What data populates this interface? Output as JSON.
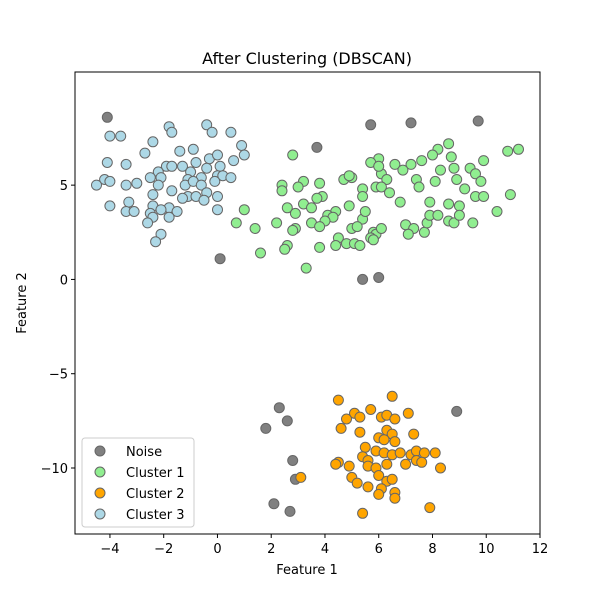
{
  "chart_data": {
    "type": "scatter",
    "title": "After Clustering (DBSCAN)",
    "xlabel": "Feature 1",
    "ylabel": "Feature 2",
    "xlim": [
      -5.3,
      12.0
    ],
    "ylim": [
      -13.5,
      11.0
    ],
    "xticks": [
      -4,
      -2,
      0,
      2,
      4,
      6,
      8,
      10,
      12
    ],
    "yticks": [
      -10,
      -5,
      0,
      5
    ],
    "grid": false,
    "legend_position": "bottom-left",
    "series": [
      {
        "name": "Noise",
        "color": "#808080",
        "points": [
          [
            -4.1,
            8.6
          ],
          [
            3.7,
            7.0
          ],
          [
            5.7,
            8.2
          ],
          [
            7.2,
            8.3
          ],
          [
            9.7,
            8.4
          ],
          [
            0.1,
            1.1
          ],
          [
            5.4,
            0.0
          ],
          [
            6.0,
            0.1
          ],
          [
            2.3,
            -6.8
          ],
          [
            2.6,
            -7.5
          ],
          [
            1.8,
            -7.9
          ],
          [
            2.8,
            -9.6
          ],
          [
            2.9,
            -10.6
          ],
          [
            2.1,
            -11.9
          ],
          [
            2.7,
            -12.3
          ],
          [
            8.9,
            -7.0
          ]
        ]
      },
      {
        "name": "Cluster 1",
        "color": "#90ee90",
        "points": [
          [
            2.8,
            6.6
          ],
          [
            8.6,
            7.2
          ],
          [
            8.2,
            6.9
          ],
          [
            8.0,
            6.6
          ],
          [
            8.7,
            6.5
          ],
          [
            7.6,
            6.3
          ],
          [
            6.0,
            6.4
          ],
          [
            7.2,
            6.1
          ],
          [
            6.6,
            6.1
          ],
          [
            9.9,
            6.3
          ],
          [
            10.8,
            6.8
          ],
          [
            11.2,
            6.9
          ],
          [
            5.7,
            6.2
          ],
          [
            6.9,
            5.8
          ],
          [
            7.4,
            5.3
          ],
          [
            8.3,
            5.8
          ],
          [
            8.8,
            5.9
          ],
          [
            9.4,
            5.9
          ],
          [
            9.6,
            5.6
          ],
          [
            8.9,
            5.3
          ],
          [
            6.1,
            5.6
          ],
          [
            6.3,
            5.3
          ],
          [
            5.0,
            5.4
          ],
          [
            4.7,
            5.3
          ],
          [
            4.9,
            5.5
          ],
          [
            3.2,
            5.2
          ],
          [
            3.0,
            4.9
          ],
          [
            2.4,
            5.0
          ],
          [
            2.4,
            4.7
          ],
          [
            3.8,
            5.1
          ],
          [
            5.4,
            4.8
          ],
          [
            5.9,
            4.9
          ],
          [
            6.1,
            4.9
          ],
          [
            7.5,
            4.9
          ],
          [
            8.1,
            5.2
          ],
          [
            9.2,
            4.8
          ],
          [
            9.8,
            5.2
          ],
          [
            10.9,
            4.5
          ],
          [
            9.6,
            4.4
          ],
          [
            9.9,
            4.4
          ],
          [
            3.9,
            4.4
          ],
          [
            3.7,
            4.3
          ],
          [
            5.4,
            4.4
          ],
          [
            6.4,
            4.6
          ],
          [
            6.8,
            4.1
          ],
          [
            7.9,
            4.1
          ],
          [
            8.6,
            4.0
          ],
          [
            9.0,
            3.9
          ],
          [
            10.4,
            3.6
          ],
          [
            4.9,
            3.9
          ],
          [
            4.4,
            3.6
          ],
          [
            3.2,
            4.0
          ],
          [
            3.5,
            3.8
          ],
          [
            2.6,
            3.8
          ],
          [
            2.9,
            3.5
          ],
          [
            4.1,
            3.4
          ],
          [
            4.3,
            3.3
          ],
          [
            4.0,
            3.1
          ],
          [
            3.5,
            3.0
          ],
          [
            3.8,
            2.8
          ],
          [
            2.9,
            2.7
          ],
          [
            2.8,
            2.6
          ],
          [
            2.2,
            3.0
          ],
          [
            5.4,
            3.2
          ],
          [
            5.5,
            3.6
          ],
          [
            5.0,
            2.7
          ],
          [
            5.2,
            2.8
          ],
          [
            5.8,
            2.5
          ],
          [
            5.9,
            2.4
          ],
          [
            5.7,
            2.2
          ],
          [
            5.8,
            2.1
          ],
          [
            6.1,
            2.7
          ],
          [
            7.0,
            2.9
          ],
          [
            7.3,
            2.7
          ],
          [
            7.1,
            2.4
          ],
          [
            7.7,
            2.5
          ],
          [
            7.8,
            3.0
          ],
          [
            7.9,
            3.4
          ],
          [
            8.2,
            3.4
          ],
          [
            8.6,
            3.1
          ],
          [
            8.8,
            3.0
          ],
          [
            9.0,
            3.4
          ],
          [
            9.5,
            3.0
          ],
          [
            4.5,
            2.2
          ],
          [
            4.4,
            1.8
          ],
          [
            4.8,
            1.9
          ],
          [
            5.1,
            1.9
          ],
          [
            5.3,
            1.8
          ],
          [
            3.8,
            1.7
          ],
          [
            2.6,
            1.8
          ],
          [
            2.5,
            1.6
          ],
          [
            1.6,
            1.4
          ],
          [
            0.7,
            3.0
          ],
          [
            1.4,
            2.7
          ],
          [
            1.0,
            3.7
          ],
          [
            3.3,
            0.6
          ],
          [
            6.0,
            6.0
          ]
        ]
      },
      {
        "name": "Cluster 2",
        "color": "#ffa500",
        "points": [
          [
            4.5,
            -6.4
          ],
          [
            6.5,
            -6.2
          ],
          [
            5.7,
            -6.9
          ],
          [
            5.1,
            -7.1
          ],
          [
            5.3,
            -7.3
          ],
          [
            4.8,
            -7.4
          ],
          [
            6.1,
            -7.3
          ],
          [
            6.3,
            -7.2
          ],
          [
            6.6,
            -7.4
          ],
          [
            7.1,
            -7.1
          ],
          [
            4.6,
            -7.9
          ],
          [
            5.3,
            -8.1
          ],
          [
            6.3,
            -8.0
          ],
          [
            6.5,
            -8.2
          ],
          [
            7.3,
            -8.2
          ],
          [
            6.0,
            -8.4
          ],
          [
            6.2,
            -8.5
          ],
          [
            6.6,
            -8.6
          ],
          [
            5.5,
            -8.9
          ],
          [
            5.9,
            -9.1
          ],
          [
            6.2,
            -9.2
          ],
          [
            6.5,
            -9.3
          ],
          [
            6.8,
            -9.2
          ],
          [
            7.2,
            -9.3
          ],
          [
            7.4,
            -9.1
          ],
          [
            7.7,
            -9.2
          ],
          [
            8.1,
            -9.2
          ],
          [
            5.4,
            -9.4
          ],
          [
            5.6,
            -9.6
          ],
          [
            7.4,
            -9.6
          ],
          [
            7.6,
            -9.7
          ],
          [
            4.5,
            -9.7
          ],
          [
            4.4,
            -9.8
          ],
          [
            4.9,
            -9.9
          ],
          [
            5.6,
            -9.9
          ],
          [
            5.9,
            -10.0
          ],
          [
            6.3,
            -9.8
          ],
          [
            7.0,
            -9.8
          ],
          [
            8.3,
            -10.0
          ],
          [
            3.1,
            -10.5
          ],
          [
            5.0,
            -10.5
          ],
          [
            6.0,
            -10.4
          ],
          [
            6.3,
            -10.7
          ],
          [
            6.5,
            -10.6
          ],
          [
            5.2,
            -10.8
          ],
          [
            5.6,
            -11.0
          ],
          [
            6.1,
            -11.1
          ],
          [
            6.6,
            -11.3
          ],
          [
            6.0,
            -11.4
          ],
          [
            6.6,
            -11.6
          ],
          [
            7.9,
            -12.1
          ],
          [
            5.4,
            -12.4
          ]
        ]
      },
      {
        "name": "Cluster 3",
        "color": "#add8e6",
        "points": [
          [
            -1.8,
            8.1
          ],
          [
            -1.7,
            7.8
          ],
          [
            -0.4,
            8.2
          ],
          [
            -0.2,
            7.8
          ],
          [
            0.5,
            7.8
          ],
          [
            -4.0,
            7.6
          ],
          [
            -3.6,
            7.6
          ],
          [
            -2.4,
            7.3
          ],
          [
            0.9,
            7.1
          ],
          [
            1.0,
            6.6
          ],
          [
            -2.7,
            6.7
          ],
          [
            -1.4,
            6.8
          ],
          [
            -0.9,
            6.9
          ],
          [
            -0.3,
            6.4
          ],
          [
            0.0,
            6.6
          ],
          [
            0.6,
            6.3
          ],
          [
            -4.1,
            6.2
          ],
          [
            -3.4,
            6.1
          ],
          [
            -1.9,
            6.0
          ],
          [
            -1.7,
            6.0
          ],
          [
            -1.3,
            6.0
          ],
          [
            -0.8,
            6.2
          ],
          [
            -0.4,
            5.9
          ],
          [
            0.1,
            6.0
          ],
          [
            -2.2,
            5.7
          ],
          [
            -1.0,
            5.7
          ],
          [
            0.0,
            5.5
          ],
          [
            0.2,
            5.5
          ],
          [
            0.5,
            5.4
          ],
          [
            -4.2,
            5.3
          ],
          [
            -4.0,
            5.2
          ],
          [
            -2.5,
            5.4
          ],
          [
            -2.1,
            5.4
          ],
          [
            -1.1,
            5.3
          ],
          [
            -0.6,
            5.4
          ],
          [
            -4.5,
            5.0
          ],
          [
            -3.4,
            5.0
          ],
          [
            -3.0,
            5.1
          ],
          [
            -2.2,
            5.0
          ],
          [
            -1.2,
            5.0
          ],
          [
            -0.9,
            5.2
          ],
          [
            -0.6,
            5.0
          ],
          [
            -0.1,
            5.2
          ],
          [
            -1.7,
            4.7
          ],
          [
            -0.4,
            4.6
          ],
          [
            -2.4,
            4.5
          ],
          [
            -1.1,
            4.4
          ],
          [
            -0.8,
            4.4
          ],
          [
            -1.3,
            4.3
          ],
          [
            -0.5,
            4.2
          ],
          [
            0.0,
            4.4
          ],
          [
            -4.0,
            3.9
          ],
          [
            -3.3,
            4.1
          ],
          [
            -2.4,
            3.9
          ],
          [
            -1.8,
            3.8
          ],
          [
            -3.4,
            3.6
          ],
          [
            -3.1,
            3.6
          ],
          [
            -2.5,
            3.5
          ],
          [
            -2.1,
            3.7
          ],
          [
            -1.5,
            3.6
          ],
          [
            0.0,
            3.7
          ],
          [
            -2.4,
            3.3
          ],
          [
            -1.8,
            3.3
          ],
          [
            -2.6,
            3.0
          ],
          [
            -2.1,
            2.4
          ],
          [
            -2.3,
            2.0
          ]
        ]
      }
    ]
  }
}
